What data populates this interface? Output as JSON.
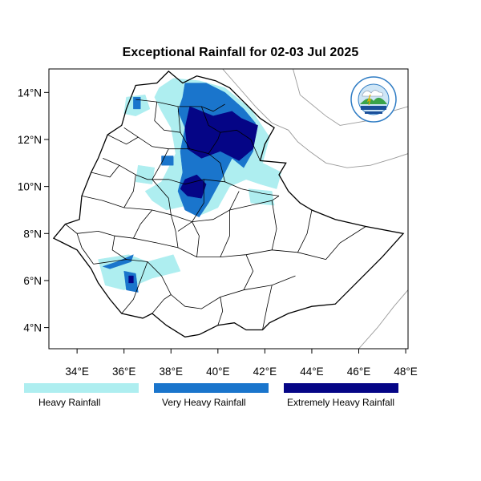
{
  "title": "Exceptional Rainfall for 02-03 Jul 2025",
  "axes": {
    "lon_min": 32.8,
    "lon_max": 48.1,
    "lat_min": 3.1,
    "lat_max": 15.0,
    "x_ticks": [
      {
        "value": 34,
        "label": "34°E"
      },
      {
        "value": 36,
        "label": "36°E"
      },
      {
        "value": 38,
        "label": "38°E"
      },
      {
        "value": 40,
        "label": "40°E"
      },
      {
        "value": 42,
        "label": "42°E"
      },
      {
        "value": 44,
        "label": "44°E"
      },
      {
        "value": 46,
        "label": "46°E"
      },
      {
        "value": 48,
        "label": "48°E"
      }
    ],
    "y_ticks": [
      {
        "value": 4,
        "label": "4°N"
      },
      {
        "value": 6,
        "label": "6°N"
      },
      {
        "value": 8,
        "label": "8°N"
      },
      {
        "value": 10,
        "label": "10°N"
      },
      {
        "value": 12,
        "label": "12°N"
      },
      {
        "value": 14,
        "label": "14°N"
      }
    ]
  },
  "legend": {
    "items": [
      {
        "label": "Heavy Rainfall",
        "color": "#aeeef0"
      },
      {
        "label": "Very Heavy Rainfall",
        "color": "#1a75cc"
      },
      {
        "label": "Extremely Heavy Rainfall",
        "color": "#050586"
      }
    ]
  },
  "logo": {
    "text": "Ethiopian Meteorology Institute",
    "icon": "emi-logo-icon"
  },
  "colors": {
    "boundary": "#000000",
    "coast": "#9a9a9a"
  },
  "rain_areas": [
    {
      "category": "heavy",
      "region": "Amhara-Tigray highlands",
      "points": [
        [
          37.5,
          14.2
        ],
        [
          38.1,
          14.6
        ],
        [
          39.2,
          14.5
        ],
        [
          40.3,
          14.2
        ],
        [
          41.4,
          13.3
        ],
        [
          42.2,
          12.1
        ],
        [
          41.9,
          11.0
        ],
        [
          42.7,
          10.6
        ],
        [
          42.5,
          9.9
        ],
        [
          41.8,
          10.1
        ],
        [
          41.2,
          10.3
        ],
        [
          40.5,
          10.0
        ],
        [
          40.0,
          9.1
        ],
        [
          39.3,
          8.8
        ],
        [
          38.7,
          9.2
        ],
        [
          37.8,
          9.0
        ],
        [
          37.2,
          9.4
        ],
        [
          36.9,
          9.8
        ],
        [
          37.6,
          10.2
        ],
        [
          37.9,
          10.8
        ],
        [
          38.2,
          11.4
        ],
        [
          38.1,
          12.0
        ],
        [
          38.0,
          12.5
        ],
        [
          37.6,
          13.2
        ],
        [
          37.3,
          13.8
        ]
      ]
    },
    {
      "category": "heavy",
      "region": "northwest patch",
      "points": [
        [
          36.1,
          13.8
        ],
        [
          36.9,
          13.9
        ],
        [
          37.1,
          13.3
        ],
        [
          36.5,
          13.0
        ],
        [
          36.0,
          13.1
        ]
      ]
    },
    {
      "category": "heavy",
      "region": "western patch",
      "points": [
        [
          36.6,
          10.9
        ],
        [
          37.3,
          10.8
        ],
        [
          37.2,
          10.1
        ],
        [
          36.5,
          10.2
        ]
      ]
    },
    {
      "category": "heavy",
      "region": "central east patch",
      "points": [
        [
          41.3,
          9.9
        ],
        [
          42.3,
          9.8
        ],
        [
          42.4,
          9.2
        ],
        [
          41.4,
          9.3
        ]
      ]
    },
    {
      "category": "heavy",
      "region": "southern-west patch",
      "points": [
        [
          34.9,
          6.9
        ],
        [
          36.2,
          7.1
        ],
        [
          37.0,
          6.8
        ],
        [
          38.1,
          7.1
        ],
        [
          38.4,
          6.4
        ],
        [
          37.2,
          6.1
        ],
        [
          36.0,
          5.6
        ],
        [
          35.2,
          5.8
        ]
      ]
    },
    {
      "category": "very_heavy",
      "region": "north highlands",
      "points": [
        [
          38.6,
          14.4
        ],
        [
          39.5,
          14.4
        ],
        [
          40.3,
          14.0
        ],
        [
          41.1,
          13.3
        ],
        [
          41.6,
          12.7
        ],
        [
          41.5,
          11.5
        ],
        [
          41.1,
          10.8
        ],
        [
          40.6,
          11.2
        ],
        [
          40.2,
          10.4
        ],
        [
          39.6,
          9.3
        ],
        [
          39.2,
          8.7
        ],
        [
          38.6,
          9.0
        ],
        [
          38.3,
          9.8
        ],
        [
          38.5,
          10.6
        ],
        [
          38.4,
          11.5
        ],
        [
          38.6,
          12.5
        ],
        [
          38.3,
          13.2
        ],
        [
          38.5,
          13.8
        ]
      ]
    },
    {
      "category": "very_heavy",
      "region": "northwest dots",
      "points": [
        [
          36.4,
          13.8
        ],
        [
          36.7,
          13.8
        ],
        [
          36.7,
          13.3
        ],
        [
          36.4,
          13.3
        ]
      ]
    },
    {
      "category": "very_heavy",
      "region": "west dots",
      "points": [
        [
          37.6,
          11.3
        ],
        [
          38.1,
          11.3
        ],
        [
          38.1,
          10.9
        ],
        [
          37.6,
          10.9
        ]
      ]
    },
    {
      "category": "very_heavy",
      "region": "south dots",
      "points": [
        [
          36.0,
          6.4
        ],
        [
          36.5,
          6.3
        ],
        [
          36.6,
          5.5
        ],
        [
          36.1,
          5.6
        ]
      ]
    },
    {
      "category": "very_heavy",
      "region": "south-west dots",
      "points": [
        [
          35.1,
          6.6
        ],
        [
          35.7,
          6.8
        ],
        [
          36.4,
          7.1
        ],
        [
          36.3,
          6.8
        ],
        [
          35.4,
          6.5
        ]
      ]
    },
    {
      "category": "extreme",
      "region": "north core",
      "points": [
        [
          38.8,
          13.4
        ],
        [
          39.8,
          13.0
        ],
        [
          40.6,
          13.2
        ],
        [
          41.0,
          12.9
        ],
        [
          41.7,
          12.6
        ],
        [
          41.5,
          11.6
        ],
        [
          40.9,
          11.1
        ],
        [
          40.1,
          11.5
        ],
        [
          39.3,
          11.2
        ],
        [
          38.7,
          11.6
        ],
        [
          38.6,
          12.5
        ]
      ]
    },
    {
      "category": "extreme",
      "region": "central core",
      "points": [
        [
          38.6,
          10.3
        ],
        [
          39.1,
          10.5
        ],
        [
          39.5,
          10.1
        ],
        [
          39.3,
          9.5
        ],
        [
          38.7,
          9.6
        ],
        [
          38.4,
          9.9
        ]
      ]
    },
    {
      "category": "extreme",
      "region": "south tiny",
      "points": [
        [
          36.2,
          6.2
        ],
        [
          36.4,
          6.2
        ],
        [
          36.4,
          5.9
        ],
        [
          36.2,
          5.9
        ]
      ]
    }
  ]
}
